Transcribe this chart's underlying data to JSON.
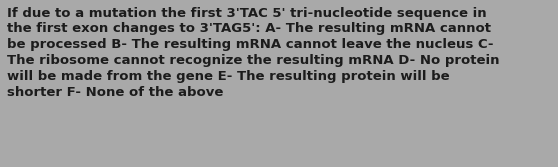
{
  "text": "If due to a mutation the first 3'TAC 5' tri-nucleotide sequence in\nthe first exon changes to 3'TAG5': A- The resulting mRNA cannot\nbe processed B- The resulting mRNA cannot leave the nucleus C-\nThe ribosome cannot recognize the resulting mRNA D- No protein\nwill be made from the gene E- The resulting protein will be\nshorter F- None of the above",
  "background_color": "#a9a9a9",
  "text_color": "#1c1c1c",
  "font_size": 9.5,
  "font_weight": "bold",
  "fig_width": 5.58,
  "fig_height": 1.67,
  "dpi": 100
}
